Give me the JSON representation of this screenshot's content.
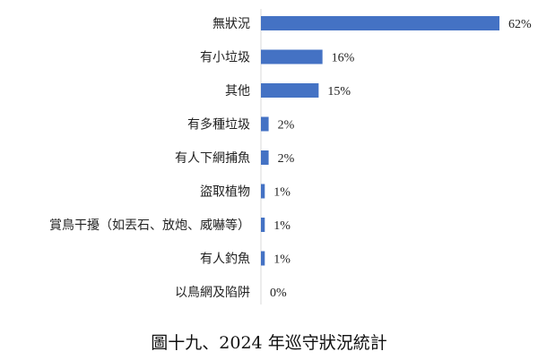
{
  "caption": "圖十九、2024 年巡守狀況統計",
  "chart_data": {
    "type": "bar",
    "orientation": "horizontal",
    "categories": [
      "無狀況",
      "有小垃圾",
      "其他",
      "有多種垃圾",
      "有人下網捕魚",
      "盜取植物",
      "賞鳥干擾（如丟石、放炮、威嚇等）",
      "有人釣魚",
      "以鳥網及陷阱"
    ],
    "values": [
      62,
      16,
      15,
      2,
      2,
      1,
      1,
      1,
      0
    ],
    "value_labels": [
      "62%",
      "16%",
      "15%",
      "2%",
      "2%",
      "1%",
      "1%",
      "1%",
      "0%"
    ],
    "unit": "%",
    "xlim": [
      0,
      62
    ],
    "grid": false,
    "legend": "none",
    "bar_color": "#4472C4"
  }
}
